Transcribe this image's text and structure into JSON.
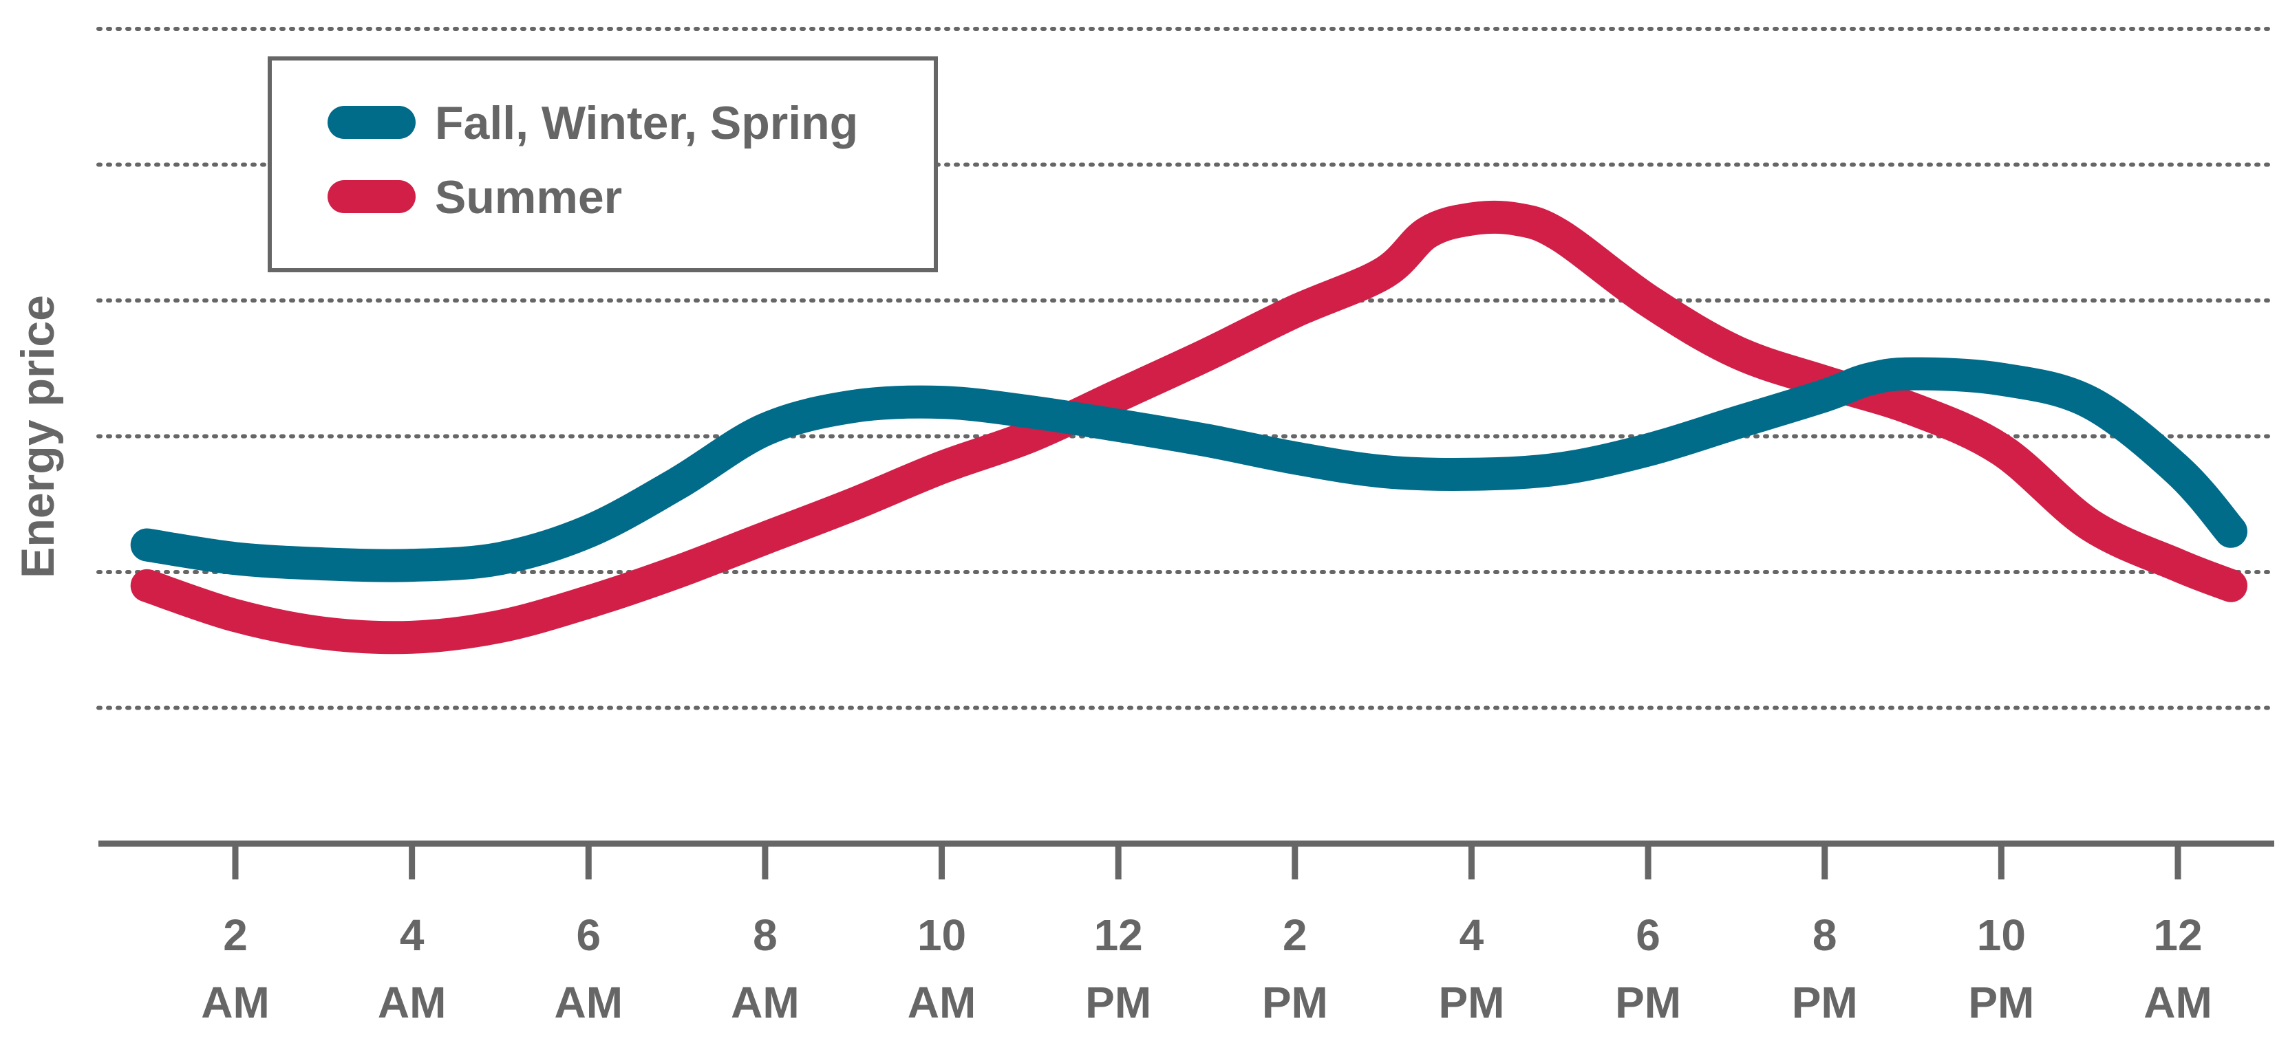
{
  "chart_data": {
    "type": "line",
    "title": "",
    "xlabel": "",
    "ylabel": "Energy price",
    "y_axis_tick_labels": false,
    "grid": true,
    "legend_position": "top-left",
    "x_ticks": [
      {
        "hour": 2,
        "top": "2",
        "bottom": "AM"
      },
      {
        "hour": 4,
        "top": "4",
        "bottom": "AM"
      },
      {
        "hour": 6,
        "top": "6",
        "bottom": "AM"
      },
      {
        "hour": 8,
        "top": "8",
        "bottom": "AM"
      },
      {
        "hour": 10,
        "top": "10",
        "bottom": "AM"
      },
      {
        "hour": 12,
        "top": "12",
        "bottom": "PM"
      },
      {
        "hour": 14,
        "top": "2",
        "bottom": "PM"
      },
      {
        "hour": 16,
        "top": "4",
        "bottom": "PM"
      },
      {
        "hour": 18,
        "top": "6",
        "bottom": "PM"
      },
      {
        "hour": 20,
        "top": "8",
        "bottom": "PM"
      },
      {
        "hour": 22,
        "top": "10",
        "bottom": "PM"
      },
      {
        "hour": 24,
        "top": "12",
        "bottom": "AM"
      }
    ],
    "xlim": [
      0.5,
      25
    ],
    "ylim": [
      0,
      6
    ],
    "gridlines": [
      1,
      2,
      3,
      4,
      5,
      6
    ],
    "series": [
      {
        "name": "Fall, Winter, Spring",
        "color": "#006c8a",
        "x": [
          1,
          2,
          3,
          4,
          5,
          6,
          7,
          8,
          9,
          10,
          11,
          12,
          13,
          14,
          15,
          16,
          17,
          18,
          19,
          20,
          20.5,
          21,
          22,
          23,
          24,
          24.6
        ],
        "y": [
          2.2,
          2.1,
          2.06,
          2.05,
          2.1,
          2.3,
          2.65,
          3.05,
          3.22,
          3.25,
          3.18,
          3.08,
          2.97,
          2.84,
          2.74,
          2.72,
          2.76,
          2.9,
          3.1,
          3.3,
          3.42,
          3.46,
          3.42,
          3.25,
          2.75,
          2.3
        ]
      },
      {
        "name": "Summer",
        "color": "#d21f47",
        "x": [
          1,
          2,
          3,
          4,
          5,
          6,
          7,
          8,
          9,
          10,
          11,
          12,
          13,
          14,
          15,
          15.5,
          16,
          16.5,
          17,
          18,
          19,
          20,
          21,
          22,
          23,
          24,
          24.6
        ],
        "y": [
          1.9,
          1.68,
          1.55,
          1.52,
          1.6,
          1.78,
          2.0,
          2.25,
          2.5,
          2.77,
          3.0,
          3.3,
          3.6,
          3.92,
          4.2,
          4.5,
          4.6,
          4.6,
          4.48,
          4.0,
          3.62,
          3.4,
          3.2,
          2.9,
          2.35,
          2.05,
          1.9
        ]
      }
    ]
  }
}
